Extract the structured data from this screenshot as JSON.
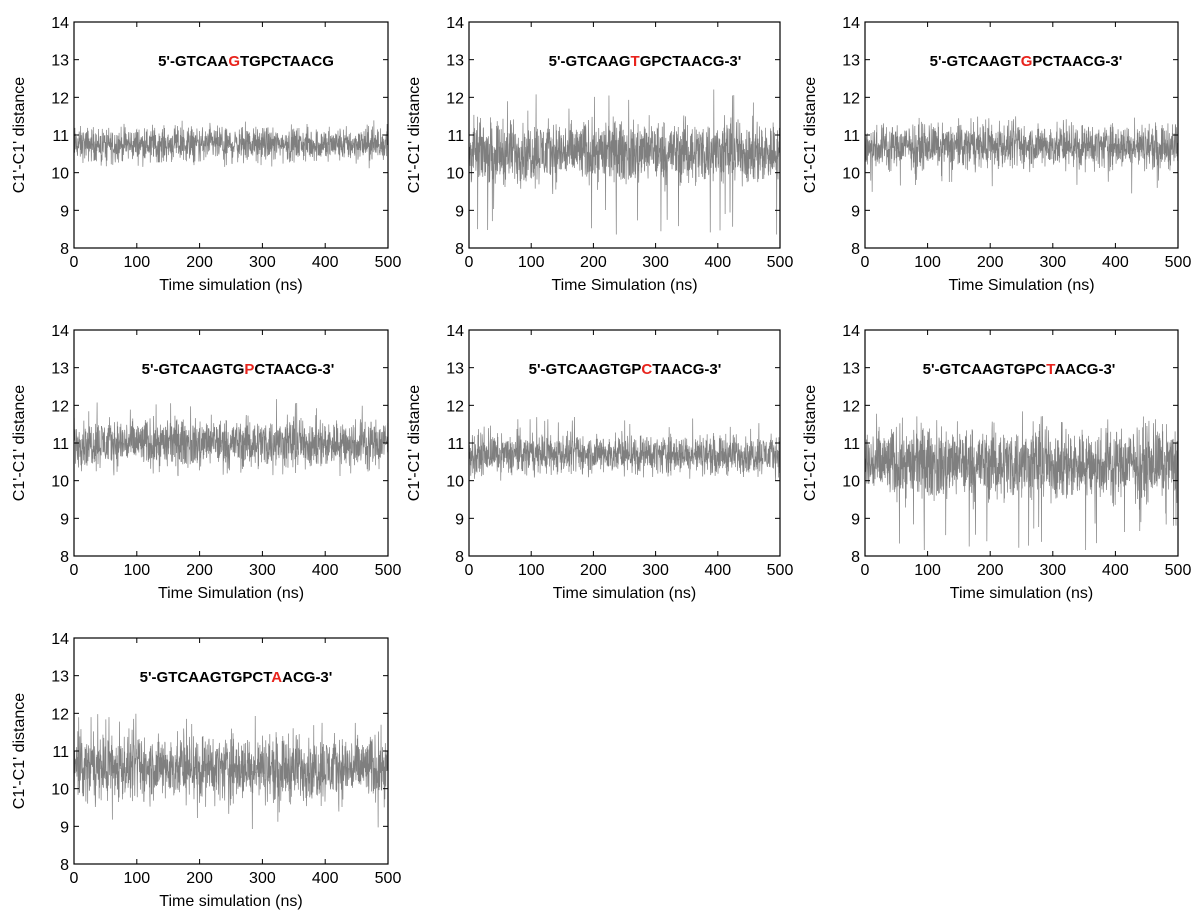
{
  "series_color": "#7f7f7f",
  "highlight_color": "#e8231c",
  "chart_data": [
    {
      "type": "line",
      "title": {
        "prefix": "5'-GTCAA",
        "highlight": "G",
        "suffix": "TGPCTAACG"
      },
      "xlabel": "Time simulation (ns)",
      "ylabel": "C1'-C1' distance",
      "xlim": [
        0,
        500
      ],
      "ylim": [
        8,
        14
      ],
      "xticks": [
        0,
        100,
        200,
        300,
        400,
        500
      ],
      "yticks": [
        8,
        9,
        10,
        11,
        12,
        13,
        14
      ],
      "grid": false,
      "series": [
        {
          "mean": 10.75,
          "band_low": 10.4,
          "band_high": 11.1,
          "min": 10.1,
          "max": 11.4
        }
      ]
    },
    {
      "type": "line",
      "title": {
        "prefix": "5'-GTCAAG",
        "highlight": "T",
        "suffix": "GPCTAACG-3'"
      },
      "xlabel": "Time Simulation (ns)",
      "ylabel": "C1'-C1' distance",
      "xlim": [
        0,
        500
      ],
      "ylim": [
        8,
        14
      ],
      "xticks": [
        0,
        100,
        200,
        300,
        400,
        500
      ],
      "yticks": [
        8,
        9,
        10,
        11,
        12,
        13,
        14
      ],
      "grid": false,
      "series": [
        {
          "mean": 10.55,
          "band_low": 9.9,
          "band_high": 11.2,
          "min": 8.3,
          "max": 12.4
        }
      ]
    },
    {
      "type": "line",
      "title": {
        "prefix": "5'-GTCAAGT",
        "highlight": "G",
        "suffix": "PCTAACG-3'"
      },
      "xlabel": "Time Simulation (ns)",
      "ylabel": "C1'-C1' distance",
      "xlim": [
        0,
        500
      ],
      "ylim": [
        8,
        14
      ],
      "xticks": [
        0,
        100,
        200,
        300,
        400,
        500
      ],
      "yticks": [
        8,
        9,
        10,
        11,
        12,
        13,
        14
      ],
      "grid": false,
      "series": [
        {
          "mean": 10.7,
          "band_low": 10.25,
          "band_high": 11.15,
          "min": 9.35,
          "max": 11.5
        }
      ]
    },
    {
      "type": "line",
      "title": {
        "prefix": "5'-GTCAAGTG",
        "highlight": "P",
        "suffix": "CTAACG-3'"
      },
      "xlabel": "Time Simulation (ns)",
      "ylabel": "C1'-C1' distance",
      "xlim": [
        0,
        500
      ],
      "ylim": [
        8,
        14
      ],
      "xticks": [
        0,
        100,
        200,
        300,
        400,
        500
      ],
      "yticks": [
        8,
        9,
        10,
        11,
        12,
        13,
        14
      ],
      "grid": false,
      "series": [
        {
          "mean": 11.0,
          "band_low": 10.5,
          "band_high": 11.5,
          "min": 10.1,
          "max": 12.3
        }
      ]
    },
    {
      "type": "line",
      "title": {
        "prefix": "5'-GTCAAGTGP",
        "highlight": "C",
        "suffix": "TAACG-3'"
      },
      "xlabel": "Time simulation (ns)",
      "ylabel": "C1'-C1' distance",
      "xlim": [
        0,
        500
      ],
      "ylim": [
        8,
        14
      ],
      "xticks": [
        0,
        100,
        200,
        300,
        400,
        500
      ],
      "yticks": [
        8,
        9,
        10,
        11,
        12,
        13,
        14
      ],
      "grid": false,
      "series": [
        {
          "mean": 10.7,
          "band_low": 10.3,
          "band_high": 11.1,
          "min": 10.0,
          "max": 11.7
        }
      ]
    },
    {
      "type": "line",
      "title": {
        "prefix": "5'-GTCAAGTGPC",
        "highlight": "T",
        "suffix": "AACG-3'"
      },
      "xlabel": "Time simulation (ns)",
      "ylabel": "C1'-C1' distance",
      "xlim": [
        0,
        500
      ],
      "ylim": [
        8,
        14
      ],
      "xticks": [
        0,
        100,
        200,
        300,
        400,
        500
      ],
      "yticks": [
        8,
        9,
        10,
        11,
        12,
        13,
        14
      ],
      "grid": false,
      "series": [
        {
          "mean": 10.45,
          "band_low": 9.7,
          "band_high": 11.2,
          "min": 8.1,
          "max": 12.0
        }
      ]
    },
    {
      "type": "line",
      "title": {
        "prefix": "5'-GTCAAGTGPCT",
        "highlight": "A",
        "suffix": "ACG-3'"
      },
      "xlabel": "Time simulation (ns)",
      "ylabel": "C1'-C1' distance",
      "xlim": [
        0,
        500
      ],
      "ylim": [
        8,
        14
      ],
      "xticks": [
        0,
        100,
        200,
        300,
        400,
        500
      ],
      "yticks": [
        8,
        9,
        10,
        11,
        12,
        13,
        14
      ],
      "grid": false,
      "series": [
        {
          "mean": 10.55,
          "band_low": 9.9,
          "band_high": 11.25,
          "min": 8.8,
          "max": 12.0
        }
      ]
    }
  ]
}
